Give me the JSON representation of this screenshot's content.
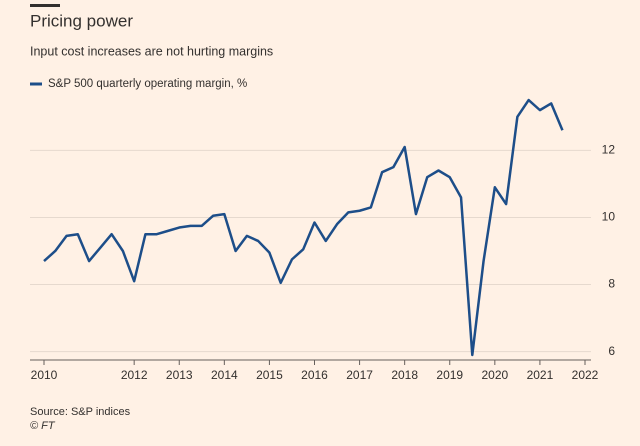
{
  "chart_data": {
    "type": "line",
    "title": "Pricing power",
    "subtitle": "Input cost increases are not hurting margins",
    "source": "Source: S&P indices",
    "credit": "© FT",
    "x": [
      2010,
      2010.25,
      2010.5,
      2010.75,
      2011,
      2011.25,
      2011.5,
      2011.75,
      2012,
      2012.25,
      2012.5,
      2012.75,
      2013,
      2013.25,
      2013.5,
      2013.75,
      2014,
      2014.25,
      2014.5,
      2014.75,
      2015,
      2015.25,
      2015.5,
      2015.75,
      2016,
      2016.25,
      2016.5,
      2016.75,
      2017,
      2017.25,
      2017.5,
      2017.75,
      2018,
      2018.25,
      2018.5,
      2018.75,
      2019,
      2019.25,
      2019.5,
      2019.75,
      2020,
      2020.25,
      2020.5,
      2020.75,
      2021,
      2021.25,
      2021.5
    ],
    "series": [
      {
        "name": "S&P 500 quarterly operating margin, %",
        "color": "#1d4e89",
        "values": [
          8.7,
          9.0,
          9.45,
          9.5,
          8.7,
          9.1,
          9.5,
          9.0,
          8.1,
          9.5,
          9.5,
          9.6,
          9.7,
          9.75,
          9.75,
          10.05,
          10.1,
          9.0,
          9.45,
          9.3,
          8.95,
          8.05,
          8.75,
          9.05,
          9.85,
          9.3,
          9.8,
          10.15,
          10.2,
          10.3,
          11.35,
          11.5,
          12.1,
          10.1,
          11.2,
          11.4,
          11.2,
          10.6,
          5.9,
          8.7,
          10.9,
          10.4,
          13.0,
          13.5,
          13.2,
          13.4,
          12.6
        ]
      }
    ],
    "xlim": [
      2010,
      2022
    ],
    "xticks": [
      2010,
      2012,
      2013,
      2014,
      2015,
      2016,
      2017,
      2018,
      2019,
      2020,
      2021,
      2022
    ],
    "ylim": [
      5.75,
      13.8
    ],
    "yticks": [
      6,
      8,
      10,
      12
    ],
    "grid": true
  }
}
